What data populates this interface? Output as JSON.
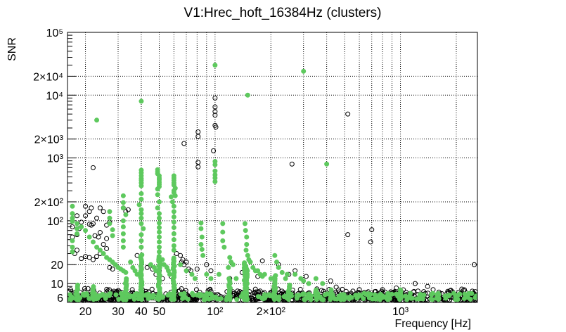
{
  "chart_data": {
    "type": "scatter",
    "title": "V1:Hrec_hoft_16384Hz (clusters)",
    "xlabel": "Frequency [Hz]",
    "ylabel": "SNR",
    "x_scale": "log",
    "y_scale": "log",
    "xlim": [
      16,
      2600
    ],
    "ylim": [
      5,
      100000
    ],
    "grid": true,
    "x_major_ticks": [
      {
        "value": 20,
        "label": "20"
      },
      {
        "value": 30,
        "label": "30"
      },
      {
        "value": 40,
        "label": "40"
      },
      {
        "value": 50,
        "label": "50"
      },
      {
        "value": 100,
        "label": "10²"
      },
      {
        "value": 200,
        "label": "2×10²"
      },
      {
        "value": 1000,
        "label": "10³"
      }
    ],
    "y_major_ticks": [
      {
        "value": 6,
        "label": "6"
      },
      {
        "value": 10,
        "label": "10"
      },
      {
        "value": 20,
        "label": "20"
      },
      {
        "value": 100,
        "label": "10²"
      },
      {
        "value": 200,
        "label": "2×10²"
      },
      {
        "value": 1000,
        "label": "10³"
      },
      {
        "value": 2000,
        "label": "2×10³"
      },
      {
        "value": 10000,
        "label": "10⁴"
      },
      {
        "value": 20000,
        "label": "2×10⁴"
      },
      {
        "value": 100000,
        "label": "10⁵"
      }
    ],
    "series": [
      {
        "marker": "open-circle",
        "color": "#000000",
        "points": [
          [
            100,
            9000
          ],
          [
            100,
            6500
          ],
          [
            100,
            5500
          ],
          [
            100,
            4800
          ],
          [
            100,
            3300
          ],
          [
            101,
            3100
          ],
          [
            98,
            1300
          ],
          [
            81,
            2600
          ],
          [
            81,
            2200
          ],
          [
            81,
            850
          ],
          [
            81,
            720
          ],
          [
            520,
            5000
          ],
          [
            520,
            60
          ],
          [
            700,
            72
          ],
          [
            690,
            46
          ],
          [
            260,
            800
          ],
          [
            68,
            1700
          ],
          [
            22,
            700
          ],
          [
            21.5,
            160
          ],
          [
            21,
            140
          ],
          [
            20,
            120
          ],
          [
            19,
            95
          ],
          [
            18.5,
            75
          ],
          [
            18,
            60
          ],
          [
            17,
            80
          ],
          [
            17,
            55
          ],
          [
            18,
            120
          ],
          [
            20,
            170
          ],
          [
            21,
            88
          ],
          [
            21.5,
            85
          ],
          [
            22,
            90
          ],
          [
            23,
            110
          ],
          [
            24,
            160
          ],
          [
            25,
            140
          ],
          [
            26,
            85
          ],
          [
            27,
            95
          ],
          [
            22.5,
            58
          ],
          [
            23.5,
            55
          ],
          [
            24,
            65
          ],
          [
            26,
            52
          ],
          [
            17.5,
            30
          ],
          [
            18,
            34
          ],
          [
            19,
            25
          ],
          [
            20,
            27
          ],
          [
            21,
            26
          ],
          [
            22,
            24
          ],
          [
            23,
            27
          ],
          [
            24,
            30
          ],
          [
            25,
            42
          ],
          [
            26,
            36
          ],
          [
            27,
            18
          ],
          [
            28,
            17
          ],
          [
            32,
            160
          ],
          [
            33,
            140
          ],
          [
            34,
            150
          ],
          [
            38,
            28
          ],
          [
            40,
            18
          ],
          [
            43,
            18
          ],
          [
            46,
            17
          ],
          [
            48,
            14
          ],
          [
            50,
            16
          ],
          [
            52,
            12
          ],
          [
            58,
            13
          ],
          [
            62,
            30
          ],
          [
            65,
            28
          ],
          [
            66,
            22
          ],
          [
            67,
            24
          ],
          [
            68,
            20
          ],
          [
            70,
            22
          ],
          [
            72,
            17
          ],
          [
            74,
            16
          ],
          [
            80,
            17
          ],
          [
            90,
            20
          ],
          [
            95,
            16
          ],
          [
            120,
            12
          ],
          [
            140,
            15
          ],
          [
            170,
            13
          ],
          [
            180,
            23
          ],
          [
            220,
            20
          ],
          [
            250,
            14
          ],
          [
            270,
            16
          ],
          [
            310,
            13
          ],
          [
            420,
            11
          ],
          [
            450,
            8.8
          ],
          [
            1200,
            10
          ],
          [
            1400,
            9
          ],
          [
            2500,
            20
          ],
          [
            600,
            8
          ],
          [
            800,
            8
          ],
          [
            950,
            8.5
          ],
          [
            1500,
            8
          ],
          [
            1800,
            7.5
          ]
        ]
      },
      {
        "marker": "filled-circle",
        "color": "#5ec95e",
        "points": [
          [
            100,
            30000
          ],
          [
            300,
            24000
          ],
          [
            150,
            10000
          ],
          [
            40,
            8000
          ],
          [
            23,
            4000
          ],
          [
            400,
            800
          ],
          [
            100,
            880
          ],
          [
            100,
            780
          ],
          [
            100,
            620
          ],
          [
            100,
            540
          ],
          [
            100,
            480
          ],
          [
            100,
            420
          ],
          [
            40,
            640
          ],
          [
            40,
            580
          ],
          [
            40,
            520
          ],
          [
            40,
            470
          ],
          [
            40,
            440
          ],
          [
            40,
            400
          ],
          [
            40,
            360
          ],
          [
            49,
            650
          ],
          [
            49,
            600
          ],
          [
            49,
            560
          ],
          [
            50,
            520
          ],
          [
            50,
            480
          ],
          [
            50,
            450
          ],
          [
            50,
            410
          ],
          [
            50,
            380
          ],
          [
            50,
            350
          ],
          [
            49,
            320
          ],
          [
            49,
            260
          ],
          [
            60,
            520
          ],
          [
            60,
            480
          ],
          [
            60,
            440
          ],
          [
            60,
            400
          ],
          [
            60,
            370
          ],
          [
            61,
            330
          ],
          [
            60,
            300
          ],
          [
            60,
            280
          ],
          [
            61,
            250
          ],
          [
            40,
            270
          ],
          [
            40,
            220
          ],
          [
            39,
            180
          ],
          [
            40,
            150
          ],
          [
            40,
            130
          ],
          [
            40,
            110
          ],
          [
            40,
            90
          ],
          [
            41,
            75
          ],
          [
            40,
            60
          ],
          [
            40,
            48
          ],
          [
            40,
            38
          ],
          [
            50,
            200
          ],
          [
            49,
            160
          ],
          [
            50,
            130
          ],
          [
            50,
            110
          ],
          [
            50,
            92
          ],
          [
            50,
            78
          ],
          [
            50,
            66
          ],
          [
            50,
            55
          ],
          [
            50,
            46
          ],
          [
            50,
            38
          ],
          [
            50,
            32
          ],
          [
            58,
            240
          ],
          [
            59,
            200
          ],
          [
            60,
            170
          ],
          [
            60,
            140
          ],
          [
            60,
            115
          ],
          [
            60,
            95
          ],
          [
            60,
            78
          ],
          [
            60,
            62
          ],
          [
            60,
            50
          ],
          [
            60,
            40
          ],
          [
            60,
            34
          ],
          [
            32,
            250
          ],
          [
            32,
            195
          ],
          [
            32,
            160
          ],
          [
            33,
            125
          ],
          [
            32,
            100
          ],
          [
            32,
            80
          ],
          [
            32,
            62
          ],
          [
            32,
            48
          ],
          [
            32,
            38
          ],
          [
            27,
            140
          ],
          [
            27,
            110
          ],
          [
            27,
            90
          ],
          [
            28,
            72
          ],
          [
            28,
            58
          ],
          [
            17,
            170
          ],
          [
            17,
            130
          ],
          [
            17,
            110
          ],
          [
            17,
            98
          ],
          [
            18,
            90
          ],
          [
            18,
            75
          ],
          [
            18,
            62
          ],
          [
            17,
            48
          ],
          [
            17,
            38
          ],
          [
            17,
            32
          ],
          [
            19,
            80
          ],
          [
            20,
            70
          ],
          [
            21,
            55
          ],
          [
            22,
            46
          ],
          [
            23,
            38
          ],
          [
            24,
            34
          ],
          [
            25,
            30
          ],
          [
            26,
            26
          ],
          [
            27,
            24
          ],
          [
            28,
            22
          ],
          [
            29,
            20
          ],
          [
            30,
            18
          ],
          [
            31,
            17
          ],
          [
            32,
            16
          ],
          [
            33,
            15
          ],
          [
            84,
            92
          ],
          [
            84,
            75
          ],
          [
            85,
            55
          ],
          [
            84,
            42
          ],
          [
            85,
            35
          ],
          [
            86,
            28
          ],
          [
            110,
            90
          ],
          [
            110,
            66
          ],
          [
            110,
            48
          ],
          [
            112,
            38
          ],
          [
            120,
            26
          ],
          [
            122,
            22
          ],
          [
            125,
            20
          ],
          [
            118,
            18
          ],
          [
            145,
            90
          ],
          [
            146,
            70
          ],
          [
            148,
            55
          ],
          [
            148,
            42
          ],
          [
            147,
            34
          ],
          [
            150,
            28
          ],
          [
            152,
            24
          ],
          [
            155,
            22
          ],
          [
            160,
            18
          ],
          [
            165,
            16
          ],
          [
            170,
            16
          ],
          [
            175,
            14
          ],
          [
            180,
            13
          ],
          [
            185,
            14
          ],
          [
            200,
            12
          ],
          [
            210,
            28
          ],
          [
            215,
            22
          ],
          [
            220,
            18
          ],
          [
            230,
            15
          ],
          [
            240,
            12
          ],
          [
            245,
            14
          ],
          [
            270,
            14
          ],
          [
            290,
            12
          ],
          [
            300,
            11
          ],
          [
            320,
            10
          ],
          [
            350,
            12
          ],
          [
            380,
            10
          ],
          [
            45,
            20
          ],
          [
            47,
            18
          ],
          [
            48,
            16
          ],
          [
            52,
            24
          ],
          [
            53,
            20
          ],
          [
            55,
            18
          ],
          [
            56,
            16
          ],
          [
            57,
            14
          ],
          [
            35,
            22
          ],
          [
            36,
            18
          ],
          [
            37,
            16
          ],
          [
            38,
            14
          ],
          [
            65,
            20
          ],
          [
            70,
            16
          ],
          [
            75,
            14
          ],
          [
            78,
            12
          ],
          [
            90,
            14
          ],
          [
            95,
            12
          ],
          [
            105,
            14
          ],
          [
            130,
            12
          ]
        ]
      }
    ]
  }
}
